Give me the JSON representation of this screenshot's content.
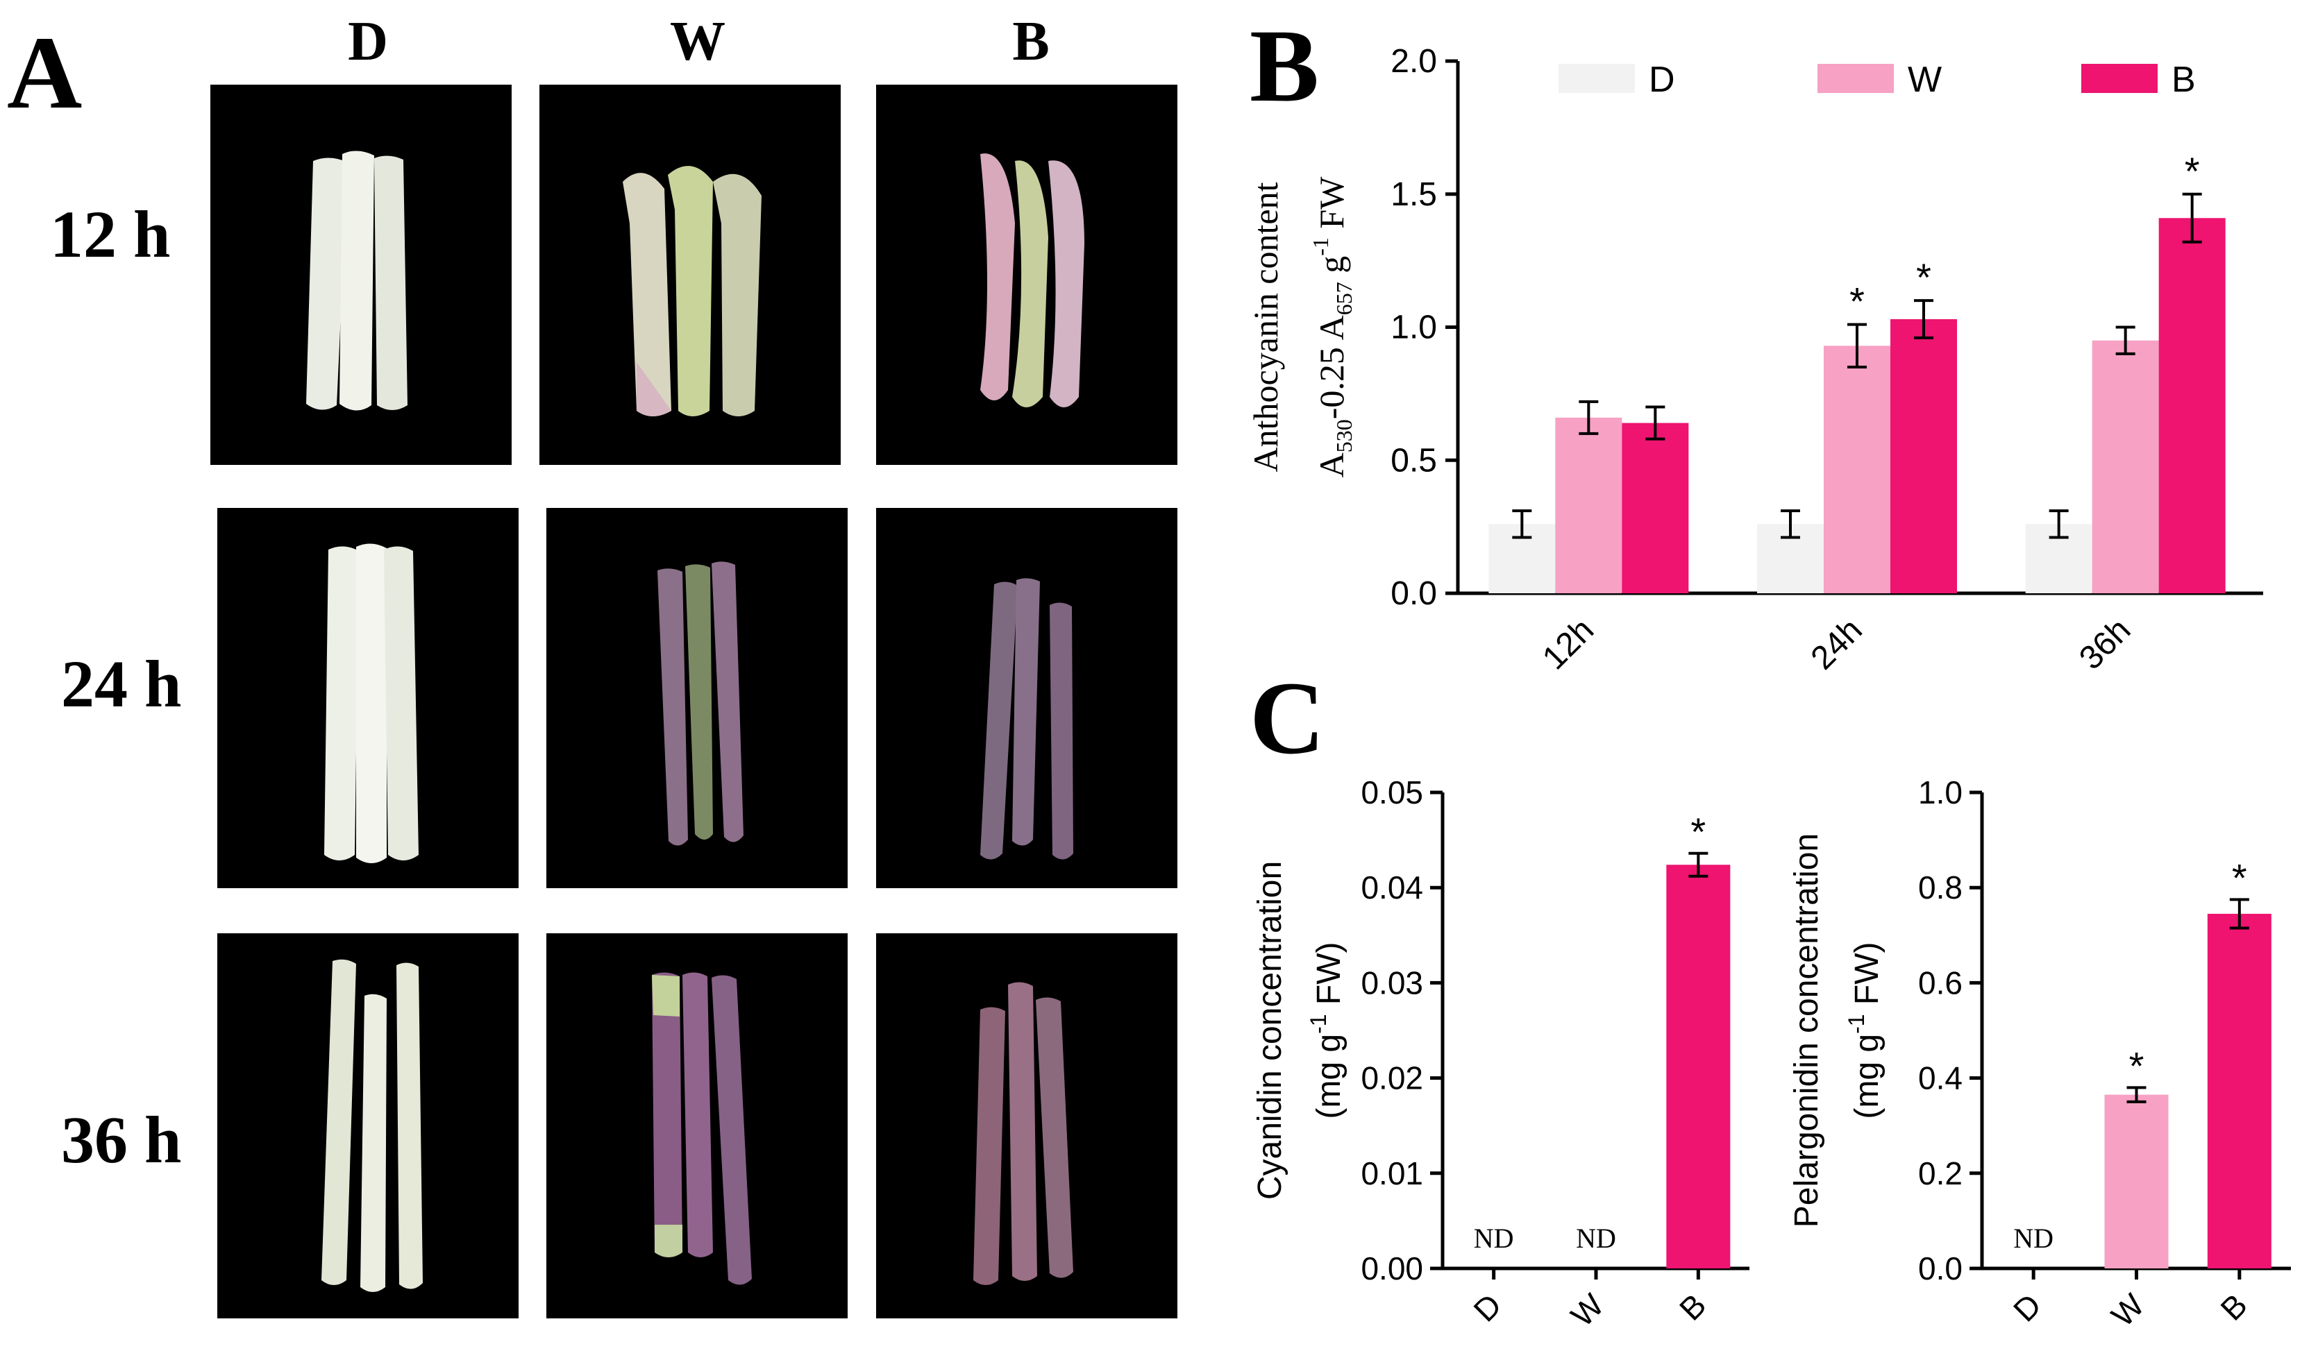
{
  "panels": {
    "a": {
      "letter": "A"
    },
    "b": {
      "letter": "B"
    },
    "c": {
      "letter": "C"
    }
  },
  "photo_grid": {
    "columns": [
      "D",
      "W",
      "B"
    ],
    "rows": [
      "12 h",
      "24 h",
      "36 h"
    ]
  },
  "colors": {
    "D": "#f2f2f2",
    "W": "#f7a1c4",
    "B": "#ee1470",
    "axis": "#000000"
  },
  "chart_data": [
    {
      "type": "bar",
      "panel": "B",
      "categories": [
        "12h",
        "24h",
        "36h"
      ],
      "ylabel_line1": "Anthocyanin content",
      "ylabel_line2_parts": [
        "A",
        "530",
        "-0.25 A",
        "657",
        " g",
        "-1",
        " FW"
      ],
      "ylim": [
        0,
        2.0
      ],
      "yticks": [
        "0.0",
        "0.5",
        "1.0",
        "1.5",
        "2.0"
      ],
      "legend_position": "top",
      "series": [
        {
          "name": "D",
          "values": [
            0.26,
            0.26,
            0.26
          ],
          "errors": [
            0.05,
            0.05,
            0.05
          ],
          "sig": [
            "",
            "",
            ""
          ]
        },
        {
          "name": "W",
          "values": [
            0.66,
            0.93,
            0.95
          ],
          "errors": [
            0.06,
            0.08,
            0.05
          ],
          "sig": [
            "",
            "*",
            ""
          ]
        },
        {
          "name": "B",
          "values": [
            0.64,
            1.03,
            1.41
          ],
          "errors": [
            0.06,
            0.07,
            0.09
          ],
          "sig": [
            "",
            "*",
            "*"
          ]
        }
      ]
    },
    {
      "type": "bar",
      "panel": "C-left",
      "categories": [
        "D",
        "W",
        "B"
      ],
      "ylabel_line1": "Cyanidin concentration",
      "ylabel_line2_parts": [
        "(mg g",
        "-1",
        "  FW)"
      ],
      "ylim": [
        0,
        0.05
      ],
      "yticks": [
        "0.00",
        "0.01",
        "0.02",
        "0.03",
        "0.04",
        "0.05"
      ],
      "values": [
        0,
        0,
        0.0424
      ],
      "errors": [
        0,
        0,
        0.0012
      ],
      "labels": [
        "ND",
        "ND",
        ""
      ],
      "sig": [
        "",
        "",
        "*"
      ]
    },
    {
      "type": "bar",
      "panel": "C-right",
      "categories": [
        "D",
        "W",
        "B"
      ],
      "ylabel_line1": "Pelargonidin concentration",
      "ylabel_line2_parts": [
        "(mg g",
        "-1",
        "  FW)"
      ],
      "ylim": [
        0,
        1.0
      ],
      "yticks": [
        "0.0",
        "0.2",
        "0.4",
        "0.6",
        "0.8",
        "1.0"
      ],
      "values": [
        0,
        0.365,
        0.745
      ],
      "errors": [
        0,
        0.015,
        0.03
      ],
      "labels": [
        "ND",
        "",
        ""
      ],
      "sig": [
        "",
        "*",
        "*"
      ]
    }
  ]
}
